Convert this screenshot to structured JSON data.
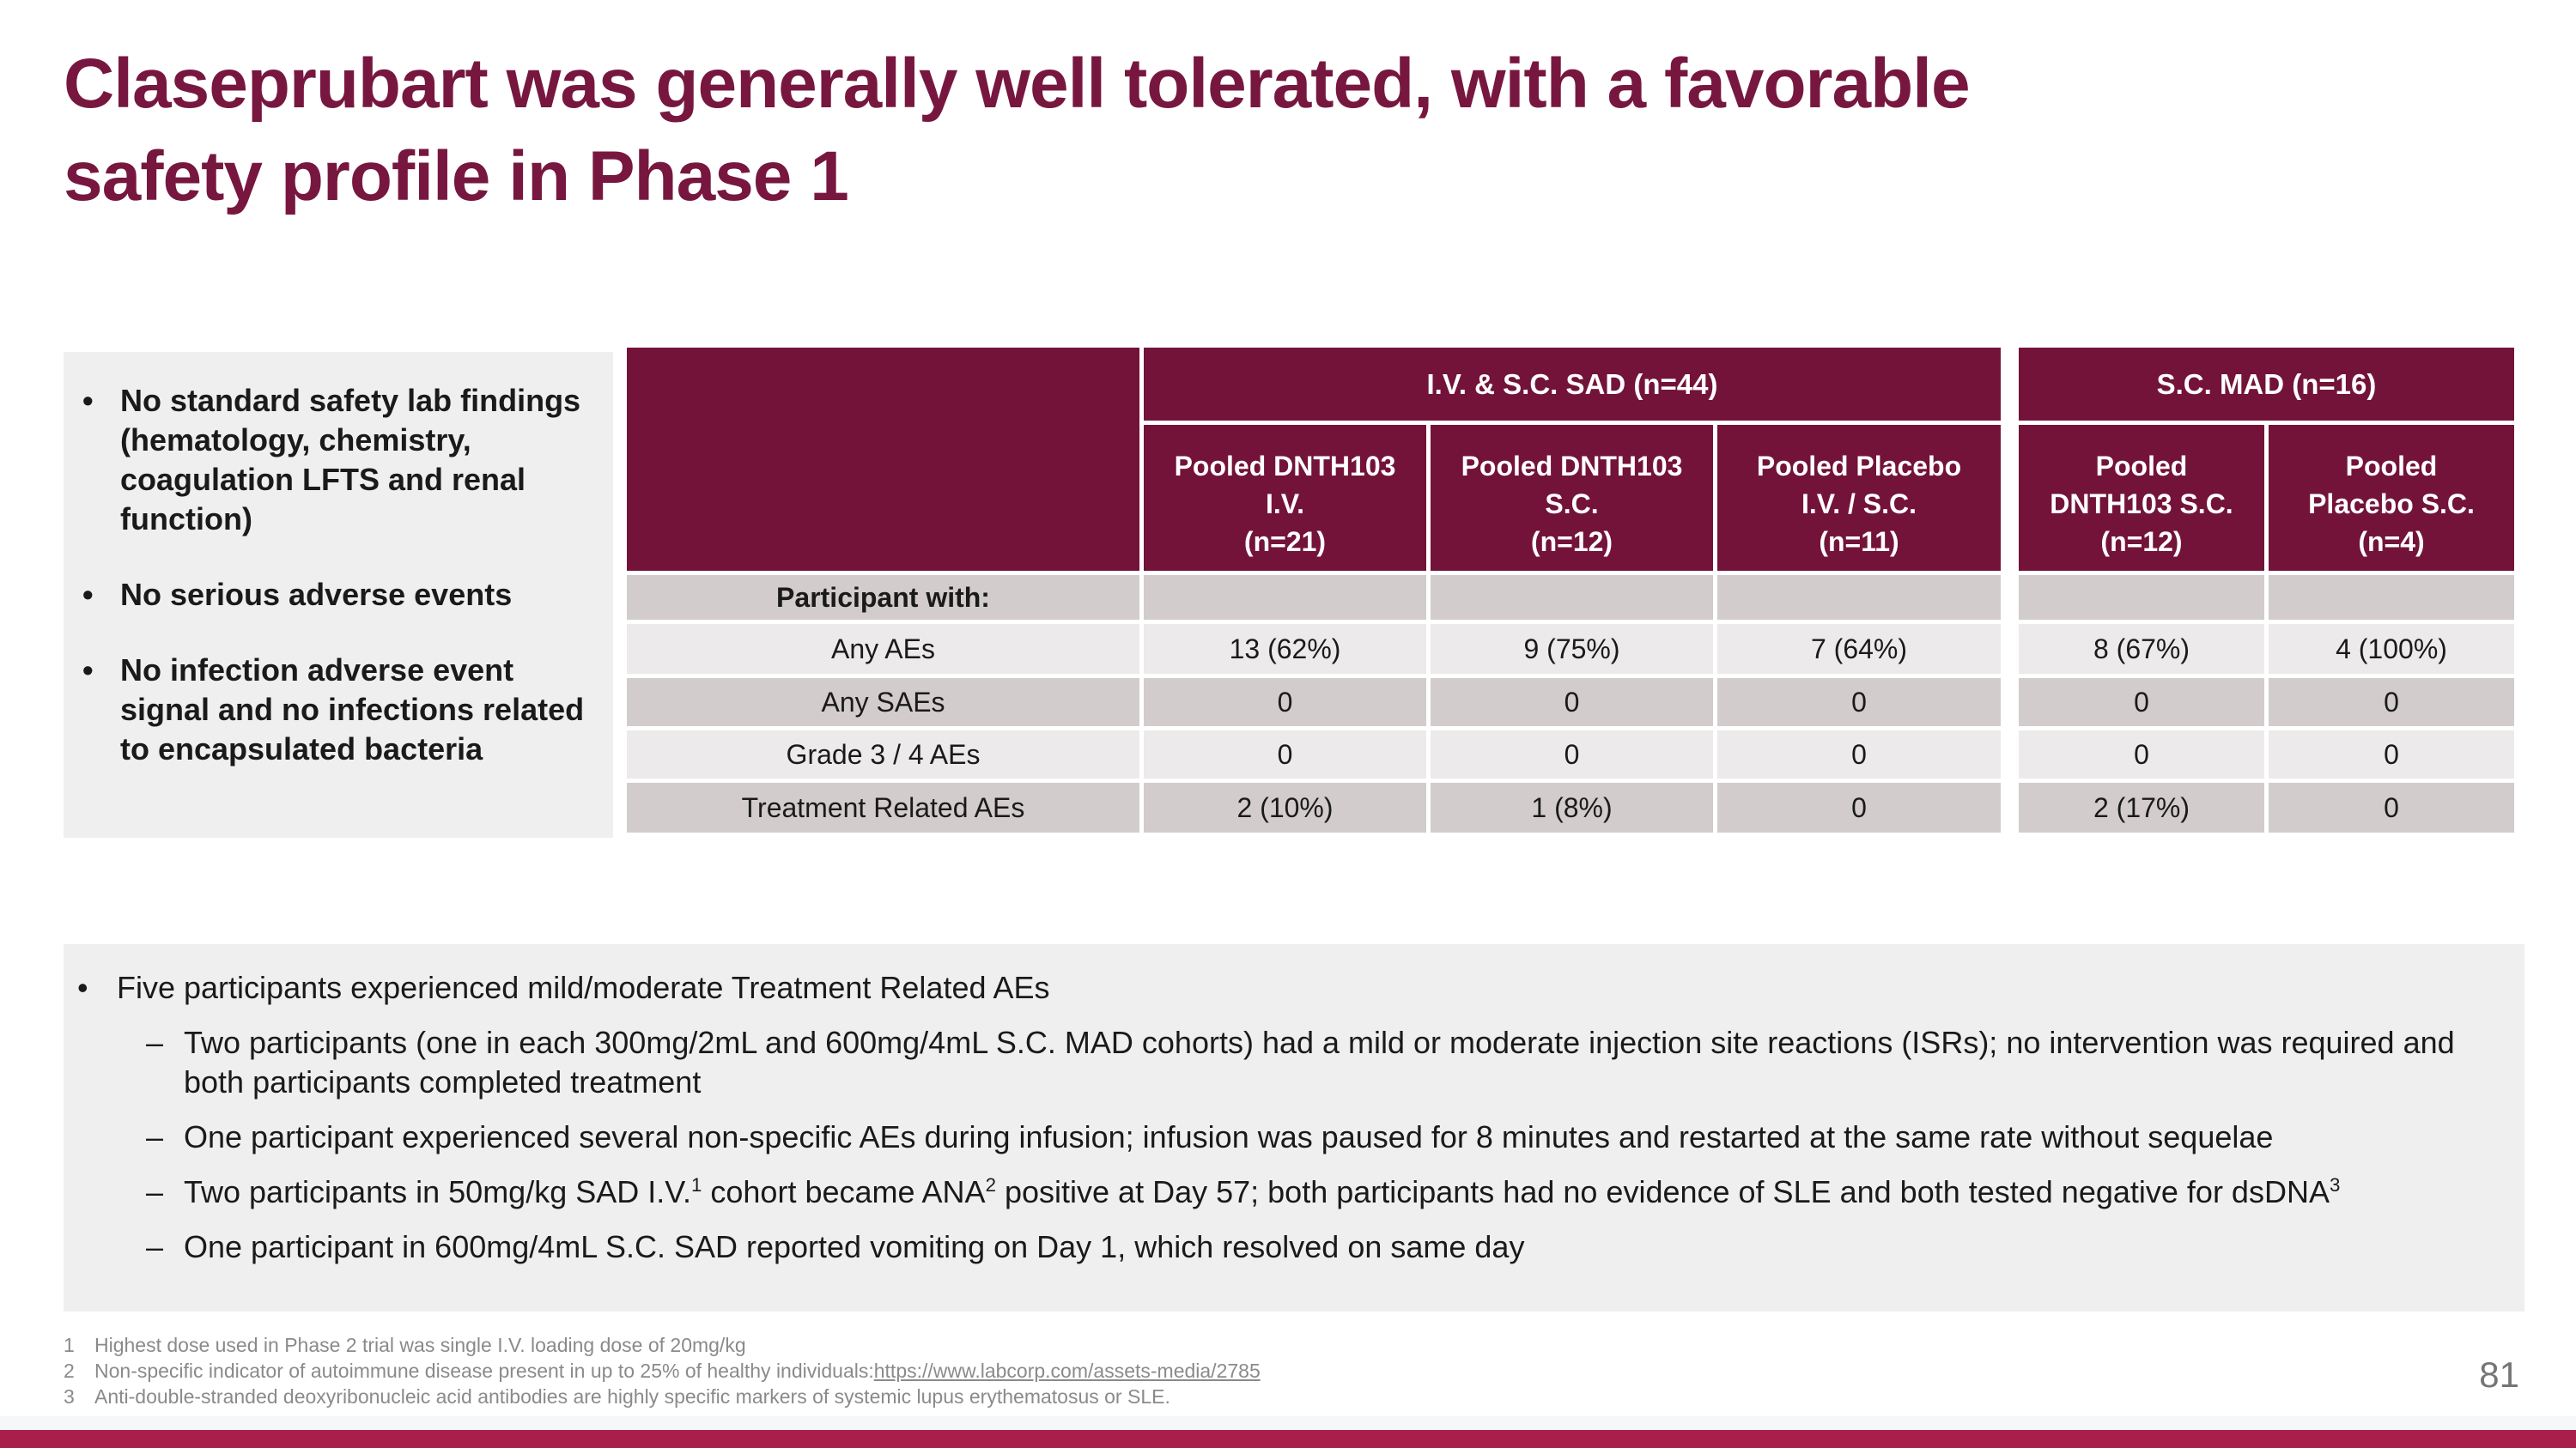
{
  "slide": {
    "title": "Claseprubart was generally well tolerated, with a favorable safety profile in Phase 1",
    "page_number": "81"
  },
  "colors": {
    "title_maroon": "#77173F",
    "table_header_maroon": "#731339",
    "accent_bar_crimson": "#A81F4B",
    "panel_gray": "#F0EFEF",
    "row_dark": "#D3CCCC",
    "row_light": "#ECEAEA"
  },
  "key_points": [
    "No standard safety lab findings (hematology, chemistry, coagulation LFTS and renal function)",
    "No serious adverse events",
    "No infection adverse event signal and no infections related to encapsulated bacteria"
  ],
  "table": {
    "row_label_header": "Participant with:",
    "sad_group": {
      "header": "I.V. & S.C. SAD (n=44)",
      "columns": [
        {
          "line1": "Pooled DNTH103",
          "line2": "I.V.",
          "n": "(n=21)"
        },
        {
          "line1": "Pooled DNTH103",
          "line2": "S.C.",
          "n": "(n=12)"
        },
        {
          "line1": "Pooled Placebo",
          "line2": "I.V. / S.C.",
          "n": "(n=11)"
        }
      ]
    },
    "mad_group": {
      "header": "S.C. MAD (n=16)",
      "columns": [
        {
          "line1": "Pooled",
          "line2": "DNTH103 S.C.",
          "n": "(n=12)"
        },
        {
          "line1": "Pooled",
          "line2": "Placebo S.C.",
          "n": "(n=4)"
        }
      ]
    },
    "rows": [
      {
        "label": "Any AEs",
        "sad": [
          "13 (62%)",
          "9 (75%)",
          "7 (64%)"
        ],
        "mad": [
          "8 (67%)",
          "4 (100%)"
        ]
      },
      {
        "label": "Any SAEs",
        "sad": [
          "0",
          "0",
          "0"
        ],
        "mad": [
          "0",
          "0"
        ]
      },
      {
        "label": "Grade 3 / 4 AEs",
        "sad": [
          "0",
          "0",
          "0"
        ],
        "mad": [
          "0",
          "0"
        ]
      },
      {
        "label": "Treatment Related AEs",
        "sad": [
          "2 (10%)",
          "1 (8%)",
          "0"
        ],
        "mad": [
          "2 (17%)",
          "0"
        ]
      }
    ]
  },
  "findings": {
    "main": "Five participants experienced mild/moderate Treatment Related AEs",
    "subs": [
      {
        "parts": [
          "Two participants (one in each 300mg/2mL and 600mg/4mL S.C. MAD cohorts) had a mild or moderate injection site reactions (ISRs); no intervention was required and both participants completed treatment"
        ]
      },
      {
        "parts": [
          "One participant experienced several non-specific AEs during infusion; infusion was paused for 8 minutes and restarted at the same rate without sequelae"
        ]
      },
      {
        "parts": [
          "Two participants in 50mg/kg SAD I.V.",
          "1",
          " cohort became ANA",
          "2",
          " positive at Day 57; both participants had no evidence of SLE and both tested negative for dsDNA",
          "3"
        ]
      },
      {
        "parts": [
          "One participant in 600mg/4mL S.C. SAD reported vomiting on Day 1, which resolved on same day"
        ]
      }
    ]
  },
  "footnotes": [
    {
      "num": "1",
      "text": "Highest dose used in Phase 2 trial was single I.V. loading dose of 20mg/kg"
    },
    {
      "num": "2",
      "text": "Non-specific indicator of autoimmune disease present in up to 25% of healthy individuals:",
      "link": "https://www.labcorp.com/assets-media/2785"
    },
    {
      "num": "3",
      "text": "Anti-double-stranded deoxyribonucleic acid antibodies are highly specific markers of systemic lupus erythematosus or SLE."
    }
  ]
}
